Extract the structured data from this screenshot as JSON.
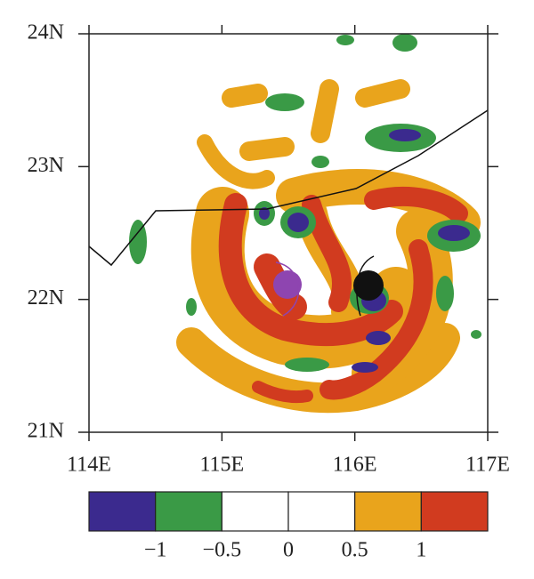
{
  "map": {
    "xlim": [
      114,
      117
    ],
    "ylim": [
      21,
      24
    ],
    "xticks": [
      {
        "value": 114,
        "label": "114E"
      },
      {
        "value": 115,
        "label": "115E"
      },
      {
        "value": 116,
        "label": "116E"
      },
      {
        "value": 117,
        "label": "117E"
      }
    ],
    "yticks": [
      {
        "value": 21,
        "label": "21N"
      },
      {
        "value": 22,
        "label": "22N"
      },
      {
        "value": 23,
        "label": "23N"
      },
      {
        "value": 24,
        "label": "24N"
      }
    ]
  },
  "colorbar": {
    "colors": [
      "#3b2a8e",
      "#3a9a46",
      "#ffffff",
      "#ffffff",
      "#e9a41c",
      "#d13b1f"
    ],
    "ticks": [
      {
        "value": -1,
        "label": "−1"
      },
      {
        "value": -0.5,
        "label": "−0.5"
      },
      0,
      0.5,
      1
    ]
  }
}
